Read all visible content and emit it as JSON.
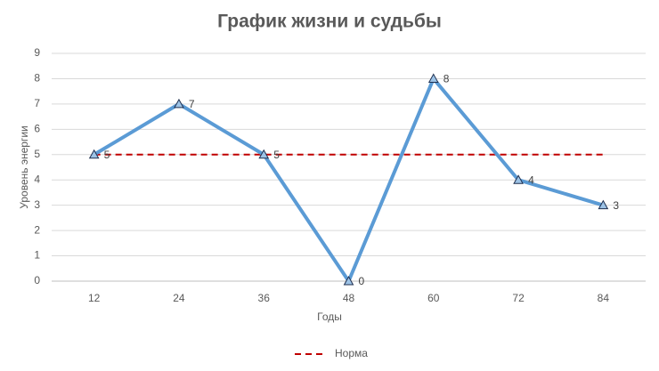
{
  "chart_data": {
    "type": "line",
    "title": "График жизни и судьбы",
    "x_label": "Годы",
    "y_label": "Уровень энергии",
    "categories": [
      "12",
      "24",
      "36",
      "48",
      "60",
      "72",
      "84"
    ],
    "series": [
      {
        "color": "#5b9bd5",
        "values": [
          5,
          7,
          5,
          0,
          8,
          4,
          3
        ],
        "data_labels": true
      },
      {
        "name": "Норма",
        "color": "#c00000",
        "dashed": true,
        "values": [
          5,
          5,
          5,
          5,
          5,
          5,
          5
        ]
      }
    ],
    "ylim": [
      0,
      9
    ],
    "yticks": [
      0,
      1,
      2,
      3,
      4,
      5,
      6,
      7,
      8,
      9
    ],
    "grid": true,
    "legend": "bottom"
  }
}
